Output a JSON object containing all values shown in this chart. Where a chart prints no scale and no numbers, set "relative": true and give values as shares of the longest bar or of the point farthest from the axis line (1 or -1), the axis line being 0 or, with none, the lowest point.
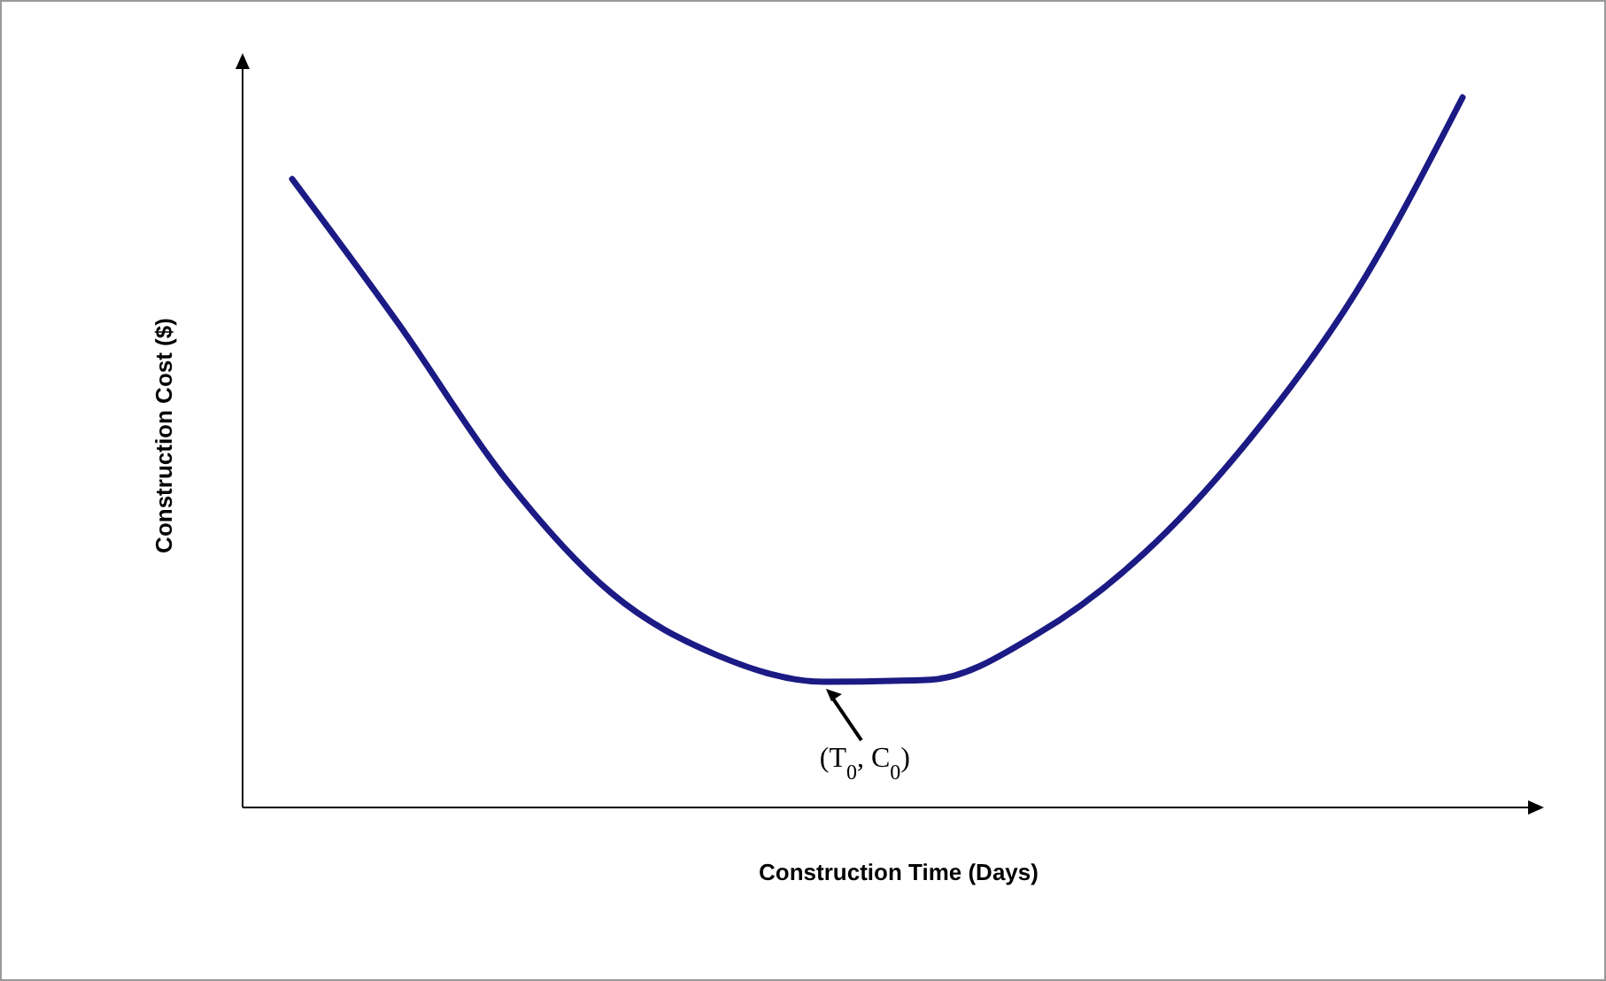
{
  "chart_data": {
    "type": "line",
    "relative": true,
    "xlabel": "Construction Time (Days)",
    "ylabel": "Construction Cost ($)",
    "categories": [
      null,
      null,
      null,
      null,
      null,
      null,
      null,
      null,
      null,
      null,
      null,
      null
    ],
    "series": [
      {
        "color": "#1c1a84",
        "values": [
          0.885,
          0.681,
          0.464,
          0.302,
          0.214,
          0.177,
          0.18,
          0.244,
          0.357,
          0.519,
          0.726,
          1
        ]
      }
    ],
    "annotations": [
      "(T$_{0}$, C$_{0}$)"
    ],
    "marker": "none",
    "line_style": "solid"
  }
}
